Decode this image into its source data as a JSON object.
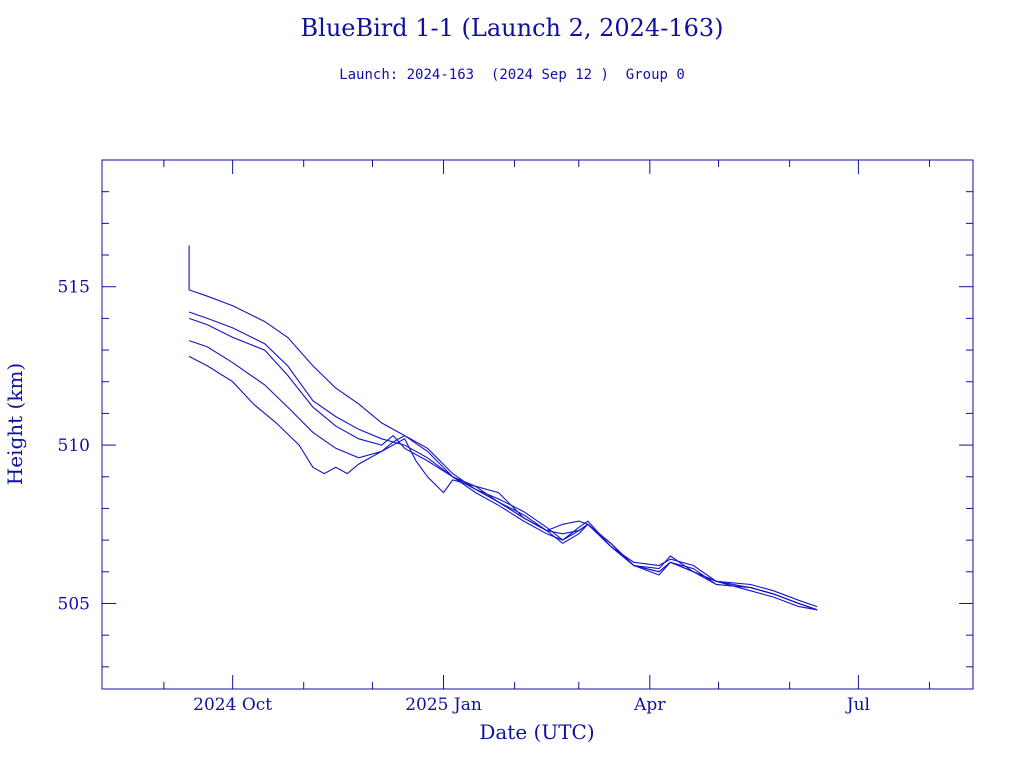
{
  "colors": {
    "ink": "#1010a0",
    "series": "#1414c8",
    "background": "#ffffff"
  },
  "chart_data": {
    "type": "line",
    "title": "BlueBird 1-1 (Launch 2, 2024-163)",
    "subtitle": "Launch: 2024-163  (2024 Sep 12 )  Group 0",
    "xlabel": "Date (UTC)",
    "ylabel": "Height (km)",
    "x_kind": "date",
    "xlim": [
      "2024-08-05",
      "2025-08-20"
    ],
    "ylim": [
      502.3,
      519.0
    ],
    "x_ticks_major": [
      {
        "date": "2024-10-01",
        "label": "2024 Oct"
      },
      {
        "date": "2025-01-01",
        "label": "2025 Jan"
      },
      {
        "date": "2025-04-01",
        "label": "Apr"
      },
      {
        "date": "2025-07-01",
        "label": "Jul"
      }
    ],
    "x_ticks_minor": [
      "2024-09-01",
      "2024-11-01",
      "2024-12-01",
      "2025-02-01",
      "2025-03-01",
      "2025-05-01",
      "2025-06-01",
      "2025-08-01"
    ],
    "y_ticks_major": [
      505,
      510,
      515
    ],
    "y_ticks_labels": [
      "505",
      "510",
      "515"
    ],
    "y_minor_step": 1,
    "grid": false,
    "legend": "none",
    "series": [
      {
        "points": [
          [
            "2024-09-12",
            516.3
          ],
          [
            "2024-09-12",
            514.9
          ],
          [
            "2024-09-20",
            514.7
          ],
          [
            "2024-10-01",
            514.4
          ],
          [
            "2024-10-15",
            513.9
          ],
          [
            "2024-10-25",
            513.4
          ],
          [
            "2024-11-05",
            512.5
          ],
          [
            "2024-11-15",
            511.8
          ],
          [
            "2024-11-25",
            511.3
          ],
          [
            "2024-12-05",
            510.7
          ],
          [
            "2024-12-15",
            510.3
          ],
          [
            "2024-12-25",
            509.9
          ],
          [
            "2025-01-05",
            509.1
          ],
          [
            "2025-01-15",
            508.6
          ],
          [
            "2025-01-25",
            508.3
          ],
          [
            "2025-02-05",
            507.9
          ],
          [
            "2025-02-15",
            507.4
          ],
          [
            "2025-02-22",
            507.0
          ],
          [
            "2025-03-01",
            507.4
          ],
          [
            "2025-03-05",
            507.6
          ],
          [
            "2025-03-15",
            506.8
          ],
          [
            "2025-03-25",
            506.2
          ],
          [
            "2025-04-05",
            506.1
          ],
          [
            "2025-04-10",
            506.5
          ],
          [
            "2025-04-20",
            506.0
          ],
          [
            "2025-04-30",
            505.7
          ],
          [
            "2025-05-15",
            505.6
          ],
          [
            "2025-05-25",
            505.4
          ],
          [
            "2025-06-05",
            505.1
          ],
          [
            "2025-06-13",
            504.9
          ]
        ]
      },
      {
        "points": [
          [
            "2024-09-12",
            514.2
          ],
          [
            "2024-09-20",
            514.0
          ],
          [
            "2024-10-01",
            513.7
          ],
          [
            "2024-10-15",
            513.2
          ],
          [
            "2024-10-25",
            512.5
          ],
          [
            "2024-11-05",
            511.4
          ],
          [
            "2024-11-15",
            510.9
          ],
          [
            "2024-11-25",
            510.5
          ],
          [
            "2024-12-05",
            510.2
          ],
          [
            "2024-12-15",
            510.0
          ],
          [
            "2024-12-25",
            509.6
          ],
          [
            "2025-01-05",
            509.0
          ],
          [
            "2025-01-15",
            508.7
          ],
          [
            "2025-01-25",
            508.2
          ],
          [
            "2025-02-05",
            507.8
          ],
          [
            "2025-02-15",
            507.3
          ],
          [
            "2025-02-22",
            507.5
          ],
          [
            "2025-03-01",
            507.6
          ],
          [
            "2025-03-05",
            507.5
          ],
          [
            "2025-03-15",
            506.8
          ],
          [
            "2025-03-25",
            506.3
          ],
          [
            "2025-04-05",
            506.2
          ],
          [
            "2025-04-10",
            506.4
          ],
          [
            "2025-04-20",
            506.2
          ],
          [
            "2025-04-30",
            505.7
          ],
          [
            "2025-05-15",
            505.5
          ],
          [
            "2025-05-25",
            505.3
          ],
          [
            "2025-06-05",
            505.0
          ],
          [
            "2025-06-13",
            504.8
          ]
        ]
      },
      {
        "points": [
          [
            "2024-09-12",
            514.0
          ],
          [
            "2024-09-20",
            513.8
          ],
          [
            "2024-10-01",
            513.4
          ],
          [
            "2024-10-15",
            513.0
          ],
          [
            "2024-10-25",
            512.2
          ],
          [
            "2024-11-05",
            511.2
          ],
          [
            "2024-11-15",
            510.6
          ],
          [
            "2024-11-25",
            510.2
          ],
          [
            "2024-12-05",
            510.0
          ],
          [
            "2024-12-10",
            510.3
          ],
          [
            "2024-12-15",
            509.9
          ],
          [
            "2024-12-25",
            509.5
          ],
          [
            "2025-01-05",
            509.0
          ],
          [
            "2025-01-15",
            508.5
          ],
          [
            "2025-01-25",
            508.1
          ],
          [
            "2025-02-05",
            507.6
          ],
          [
            "2025-02-15",
            507.2
          ],
          [
            "2025-02-22",
            507.0
          ],
          [
            "2025-03-01",
            507.3
          ],
          [
            "2025-03-05",
            507.5
          ],
          [
            "2025-03-15",
            506.9
          ],
          [
            "2025-03-25",
            506.2
          ],
          [
            "2025-04-05",
            506.0
          ],
          [
            "2025-04-10",
            506.3
          ],
          [
            "2025-04-20",
            506.1
          ],
          [
            "2025-04-30",
            505.6
          ],
          [
            "2025-05-15",
            505.5
          ],
          [
            "2025-05-25",
            505.3
          ],
          [
            "2025-06-05",
            505.0
          ],
          [
            "2025-06-13",
            504.8
          ]
        ]
      },
      {
        "points": [
          [
            "2024-09-12",
            513.3
          ],
          [
            "2024-09-20",
            513.1
          ],
          [
            "2024-10-01",
            512.6
          ],
          [
            "2024-10-15",
            511.9
          ],
          [
            "2024-10-25",
            511.2
          ],
          [
            "2024-11-05",
            510.4
          ],
          [
            "2024-11-15",
            509.9
          ],
          [
            "2024-11-25",
            509.6
          ],
          [
            "2024-12-05",
            509.8
          ],
          [
            "2024-12-10",
            510.1
          ],
          [
            "2024-12-15",
            510.3
          ],
          [
            "2024-12-25",
            509.8
          ],
          [
            "2025-01-05",
            509.0
          ],
          [
            "2025-01-15",
            508.6
          ],
          [
            "2025-01-25",
            508.2
          ],
          [
            "2025-02-05",
            507.7
          ],
          [
            "2025-02-15",
            507.3
          ],
          [
            "2025-02-22",
            506.9
          ],
          [
            "2025-03-01",
            507.2
          ],
          [
            "2025-03-05",
            507.5
          ],
          [
            "2025-03-15",
            506.8
          ],
          [
            "2025-03-25",
            506.2
          ],
          [
            "2025-04-05",
            505.9
          ],
          [
            "2025-04-10",
            506.3
          ],
          [
            "2025-04-20",
            506.0
          ],
          [
            "2025-04-30",
            505.7
          ],
          [
            "2025-05-15",
            505.4
          ],
          [
            "2025-05-25",
            505.2
          ],
          [
            "2025-06-05",
            504.9
          ],
          [
            "2025-06-13",
            504.8
          ]
        ]
      },
      {
        "points": [
          [
            "2024-09-12",
            512.8
          ],
          [
            "2024-09-20",
            512.5
          ],
          [
            "2024-10-01",
            512.0
          ],
          [
            "2024-10-10",
            511.3
          ],
          [
            "2024-10-20",
            510.7
          ],
          [
            "2024-10-30",
            510.0
          ],
          [
            "2024-11-05",
            509.3
          ],
          [
            "2024-11-10",
            509.1
          ],
          [
            "2024-11-15",
            509.3
          ],
          [
            "2024-11-20",
            509.1
          ],
          [
            "2024-11-25",
            509.4
          ],
          [
            "2024-12-05",
            509.8
          ],
          [
            "2024-12-15",
            510.2
          ],
          [
            "2024-12-20",
            509.5
          ],
          [
            "2024-12-25",
            509.0
          ],
          [
            "2025-01-01",
            508.5
          ],
          [
            "2025-01-05",
            508.9
          ],
          [
            "2025-01-15",
            508.7
          ],
          [
            "2025-01-25",
            508.5
          ],
          [
            "2025-02-05",
            507.7
          ],
          [
            "2025-02-15",
            507.3
          ],
          [
            "2025-02-22",
            507.2
          ],
          [
            "2025-03-01",
            507.3
          ],
          [
            "2025-03-05",
            507.5
          ],
          [
            "2025-03-15",
            506.9
          ],
          [
            "2025-03-25",
            506.2
          ],
          [
            "2025-04-05",
            506.0
          ],
          [
            "2025-04-10",
            506.3
          ],
          [
            "2025-04-20",
            506.0
          ],
          [
            "2025-04-30",
            505.6
          ],
          [
            "2025-05-15",
            505.5
          ],
          [
            "2025-05-25",
            505.3
          ],
          [
            "2025-06-05",
            505.0
          ],
          [
            "2025-06-13",
            504.8
          ]
        ]
      }
    ]
  }
}
